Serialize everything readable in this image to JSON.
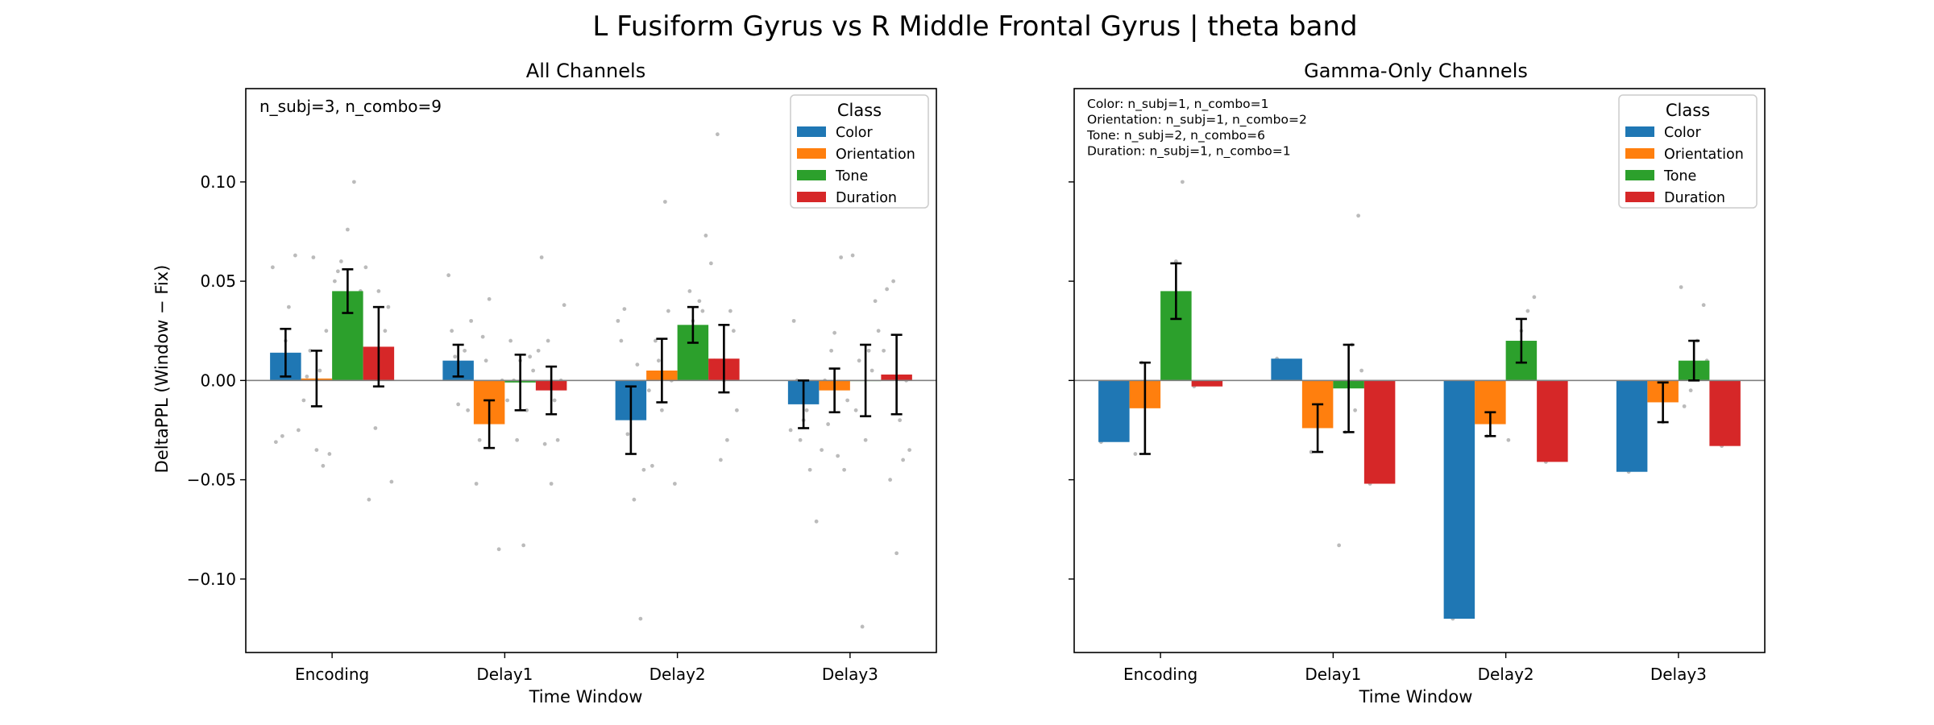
{
  "figure": {
    "suptitle": "L Fusiform Gyrus vs R Middle Frontal Gyrus  |  theta band"
  },
  "colors": {
    "Color": "#1f77b4",
    "Orientation": "#ff7f0e",
    "Tone": "#2ca02c",
    "Duration": "#d62728",
    "scatter": "#bbbbbb"
  },
  "chart_data": [
    {
      "type": "bar",
      "title": "All Channels",
      "xlabel": "Time Window",
      "ylabel": "DeltaPPL (Window − Fix)",
      "categories": [
        "Encoding",
        "Delay1",
        "Delay2",
        "Delay3"
      ],
      "ylim": [
        -0.137,
        0.147
      ],
      "yticks": [
        -0.1,
        -0.05,
        0.0,
        0.05,
        0.1
      ],
      "ytick_labels": [
        "−0.10",
        "−0.05",
        "0.00",
        "0.05",
        "0.10"
      ],
      "show_ytick_labels": true,
      "annotation": [
        "n_subj=3, n_combo=9"
      ],
      "legend": {
        "title": "Class",
        "placement": "top-right"
      },
      "series": [
        {
          "name": "Color",
          "values": [
            0.014,
            0.01,
            -0.02,
            -0.012
          ],
          "err": [
            0.012,
            0.008,
            0.017,
            0.012
          ],
          "points": [
            [
              0.057,
              0.063,
              0.037,
              -0.028,
              -0.031,
              -0.025,
              0.01,
              0.02,
              0.005
            ],
            [
              0.053,
              0.03,
              0.015,
              -0.012,
              0.025,
              0.002,
              -0.015,
              0.006,
              0.012
            ],
            [
              0.036,
              0.03,
              -0.12,
              -0.06,
              -0.027,
              0.02,
              -0.045,
              0.008,
              -0.01
            ],
            [
              -0.03,
              0.03,
              -0.071,
              -0.045,
              -0.02,
              0.0,
              -0.025,
              -0.008,
              -0.015
            ]
          ]
        },
        {
          "name": "Orientation",
          "values": [
            0.001,
            -0.022,
            0.005,
            -0.005
          ],
          "err": [
            0.014,
            0.012,
            0.016,
            0.011
          ],
          "points": [
            [
              0.062,
              0.002,
              -0.037,
              -0.043,
              -0.035,
              0.015,
              -0.01,
              0.025,
              0.005
            ],
            [
              0.041,
              0.022,
              -0.052,
              -0.085,
              -0.02,
              0.01,
              -0.03,
              0.0,
              -0.015
            ],
            [
              0.09,
              0.01,
              -0.043,
              -0.052,
              0.035,
              -0.015,
              0.02,
              -0.005,
              0.0
            ],
            [
              0.062,
              0.024,
              -0.022,
              -0.035,
              -0.045,
              -0.038,
              0.015,
              0.0,
              -0.01
            ]
          ]
        },
        {
          "name": "Tone",
          "values": [
            0.045,
            -0.001,
            0.028,
            0.0
          ],
          "err": [
            0.011,
            0.014,
            0.009,
            0.018
          ],
          "points": [
            [
              0.1,
              0.076,
              0.06,
              0.05,
              0.03,
              0.04,
              0.025,
              0.055,
              0.045
            ],
            [
              0.012,
              -0.083,
              -0.03,
              0.02,
              0.005,
              -0.015,
              0.01,
              0.0,
              -0.01
            ],
            [
              0.073,
              0.04,
              0.03,
              0.02,
              0.015,
              0.035,
              0.025,
              0.045,
              0.01
            ],
            [
              0.063,
              0.04,
              0.015,
              -0.124,
              -0.015,
              0.025,
              0.005,
              -0.03,
              0.01
            ]
          ]
        },
        {
          "name": "Duration",
          "values": [
            0.017,
            -0.005,
            0.011,
            0.003
          ],
          "err": [
            0.02,
            0.012,
            0.017,
            0.02
          ],
          "points": [
            [
              0.057,
              0.037,
              0.015,
              -0.024,
              -0.06,
              -0.051,
              0.025,
              0.045,
              0.005
            ],
            [
              0.062,
              0.038,
              -0.03,
              -0.052,
              -0.032,
              0.015,
              0.0,
              -0.01,
              0.02
            ],
            [
              0.124,
              0.059,
              0.025,
              -0.03,
              -0.04,
              0.01,
              -0.015,
              0.035,
              0.0
            ],
            [
              0.05,
              0.046,
              -0.035,
              -0.04,
              -0.087,
              -0.05,
              0.015,
              0.0,
              -0.02
            ]
          ]
        }
      ]
    },
    {
      "type": "bar",
      "title": "Gamma-Only Channels",
      "xlabel": "Time Window",
      "ylabel": "",
      "categories": [
        "Encoding",
        "Delay1",
        "Delay2",
        "Delay3"
      ],
      "ylim": [
        -0.137,
        0.147
      ],
      "yticks": [
        -0.1,
        -0.05,
        0.0,
        0.05,
        0.1
      ],
      "ytick_labels": [],
      "show_ytick_labels": false,
      "annotation": [
        "Color: n_subj=1, n_combo=1",
        "Orientation: n_subj=1, n_combo=2",
        "Tone: n_subj=2, n_combo=6",
        "Duration: n_subj=1, n_combo=1"
      ],
      "legend": {
        "title": "Class",
        "placement": "top-right"
      },
      "series": [
        {
          "name": "Color",
          "values": [
            -0.031,
            0.011,
            -0.12,
            -0.046
          ],
          "err": [
            null,
            null,
            null,
            null
          ],
          "points": [
            [
              -0.031
            ],
            [
              0.011
            ],
            [
              -0.12
            ],
            [
              -0.046
            ]
          ]
        },
        {
          "name": "Orientation",
          "values": [
            -0.014,
            -0.024,
            -0.022,
            -0.011
          ],
          "err": [
            0.023,
            0.012,
            0.006,
            0.01
          ],
          "points": [
            [
              0.009,
              -0.037
            ],
            [
              -0.012,
              -0.036
            ],
            [
              -0.016,
              -0.028
            ],
            [
              -0.001,
              -0.021
            ]
          ]
        },
        {
          "name": "Tone",
          "values": [
            0.045,
            -0.004,
            0.02,
            0.01
          ],
          "err": [
            0.014,
            0.022,
            0.011,
            0.01
          ],
          "points": [
            [
              0.1,
              0.06,
              0.04,
              0.03,
              0.035,
              0.005
            ],
            [
              0.083,
              0.018,
              -0.026,
              -0.083,
              0.005,
              -0.015
            ],
            [
              0.042,
              0.035,
              0.025,
              0.01,
              -0.03,
              0.015
            ],
            [
              0.047,
              0.038,
              0.02,
              -0.005,
              -0.013,
              0.01
            ]
          ]
        },
        {
          "name": "Duration",
          "values": [
            -0.003,
            -0.052,
            -0.041,
            -0.033
          ],
          "err": [
            null,
            null,
            null,
            null
          ],
          "points": [
            [
              -0.003
            ],
            [
              -0.052
            ],
            [
              -0.041
            ],
            [
              -0.033
            ]
          ]
        }
      ]
    }
  ]
}
